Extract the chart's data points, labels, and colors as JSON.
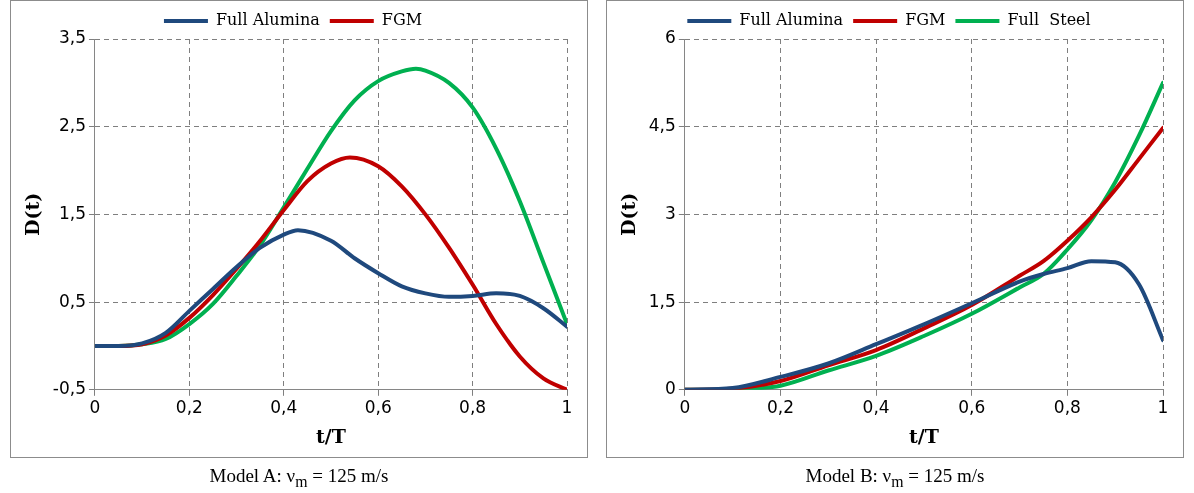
{
  "chart_data": [
    {
      "type": "line",
      "xlabel": "t/T",
      "ylabel": "D(t)",
      "legend": "top",
      "grid": true,
      "annotations": [
        "Model A:  ν$_{m}$ = 125 m/s"
      ],
      "xlim": [
        0,
        1
      ],
      "xticks": [
        {
          "value": 0,
          "label": "0"
        },
        {
          "value": 0.2,
          "label": "0,2"
        },
        {
          "value": 0.4,
          "label": "0,4"
        },
        {
          "value": 0.6,
          "label": "0,6"
        },
        {
          "value": 0.8,
          "label": "0,8"
        },
        {
          "value": 1,
          "label": "1"
        }
      ],
      "ylim": [
        -0.5,
        3.5
      ],
      "yticks": [
        {
          "value": -0.5,
          "label": "-0,5"
        },
        {
          "value": 0.5,
          "label": "0,5"
        },
        {
          "value": 1.5,
          "label": "1,5"
        },
        {
          "value": 2.5,
          "label": "2,5"
        },
        {
          "value": 3.5,
          "label": "3,5"
        }
      ],
      "series": [
        {
          "name": "Full Alumina",
          "color": "#1f497d",
          "x": [
            0,
            0.05,
            0.1,
            0.15,
            0.2,
            0.25,
            0.3,
            0.35,
            0.4,
            0.43,
            0.5,
            0.55,
            0.6,
            0.65,
            0.7,
            0.75,
            0.8,
            0.85,
            0.9,
            0.95,
            1
          ],
          "values": [
            0,
            0,
            0.03,
            0.15,
            0.4,
            0.65,
            0.9,
            1.12,
            1.27,
            1.32,
            1.2,
            1.0,
            0.83,
            0.68,
            0.6,
            0.56,
            0.57,
            0.6,
            0.57,
            0.43,
            0.22
          ]
        },
        {
          "name": "FGM",
          "color": "#c00000",
          "x": [
            0,
            0.05,
            0.1,
            0.15,
            0.2,
            0.25,
            0.3,
            0.35,
            0.4,
            0.45,
            0.5,
            0.54,
            0.6,
            0.65,
            0.7,
            0.75,
            0.8,
            0.85,
            0.9,
            0.95,
            1
          ],
          "values": [
            0,
            0,
            0.02,
            0.12,
            0.32,
            0.58,
            0.88,
            1.2,
            1.55,
            1.88,
            2.08,
            2.15,
            2.05,
            1.82,
            1.5,
            1.12,
            0.7,
            0.25,
            -0.12,
            -0.37,
            -0.5
          ]
        },
        {
          "color": "#00b050",
          "x": [
            0,
            0.05,
            0.1,
            0.15,
            0.2,
            0.25,
            0.3,
            0.35,
            0.4,
            0.45,
            0.5,
            0.55,
            0.6,
            0.65,
            0.68,
            0.7,
            0.75,
            0.8,
            0.85,
            0.9,
            0.95,
            1
          ],
          "values": [
            0,
            0,
            0.02,
            0.08,
            0.25,
            0.48,
            0.8,
            1.15,
            1.58,
            2.02,
            2.45,
            2.8,
            3.02,
            3.13,
            3.16,
            3.14,
            3.0,
            2.72,
            2.25,
            1.65,
            0.95,
            0.25
          ]
        }
      ]
    },
    {
      "type": "line",
      "xlabel": "t/T",
      "ylabel": "D(t)",
      "legend": "top",
      "grid": true,
      "annotations": [
        "Model B:  ν$_{m}$ = 125 m/s"
      ],
      "xlim": [
        0,
        1
      ],
      "xticks": [
        {
          "value": 0,
          "label": "0"
        },
        {
          "value": 0.2,
          "label": "0,2"
        },
        {
          "value": 0.4,
          "label": "0,4"
        },
        {
          "value": 0.6,
          "label": "0,6"
        },
        {
          "value": 0.8,
          "label": "0,8"
        },
        {
          "value": 1,
          "label": "1"
        }
      ],
      "ylim": [
        0,
        6
      ],
      "yticks": [
        {
          "value": 0,
          "label": "0"
        },
        {
          "value": 1.5,
          "label": "1,5"
        },
        {
          "value": 3,
          "label": "3"
        },
        {
          "value": 4.5,
          "label": "4,5"
        },
        {
          "value": 6,
          "label": "6"
        }
      ],
      "series": [
        {
          "name": "Full Alumina",
          "color": "#1f497d",
          "x": [
            0,
            0.1,
            0.2,
            0.3,
            0.4,
            0.5,
            0.6,
            0.7,
            0.75,
            0.8,
            0.85,
            0.9,
            0.95,
            1
          ],
          "values": [
            0,
            0.03,
            0.22,
            0.45,
            0.78,
            1.12,
            1.48,
            1.85,
            1.98,
            2.08,
            2.2,
            2.18,
            1.8,
            0.85
          ]
        },
        {
          "name": "FGM",
          "color": "#c00000",
          "x": [
            0,
            0.1,
            0.2,
            0.3,
            0.4,
            0.5,
            0.6,
            0.7,
            0.75,
            0.8,
            0.85,
            0.9,
            0.95,
            1
          ],
          "values": [
            0,
            0.02,
            0.15,
            0.42,
            0.68,
            1.05,
            1.45,
            1.95,
            2.2,
            2.55,
            2.95,
            3.42,
            3.95,
            4.48
          ]
        },
        {
          "name": "Full  Steel",
          "color": "#00b050",
          "x": [
            0,
            0.1,
            0.2,
            0.3,
            0.4,
            0.5,
            0.6,
            0.7,
            0.75,
            0.8,
            0.85,
            0.9,
            0.95,
            1
          ],
          "values": [
            0,
            0.01,
            0.07,
            0.33,
            0.58,
            0.92,
            1.3,
            1.75,
            1.98,
            2.4,
            2.9,
            3.55,
            4.35,
            5.25
          ]
        }
      ]
    }
  ]
}
